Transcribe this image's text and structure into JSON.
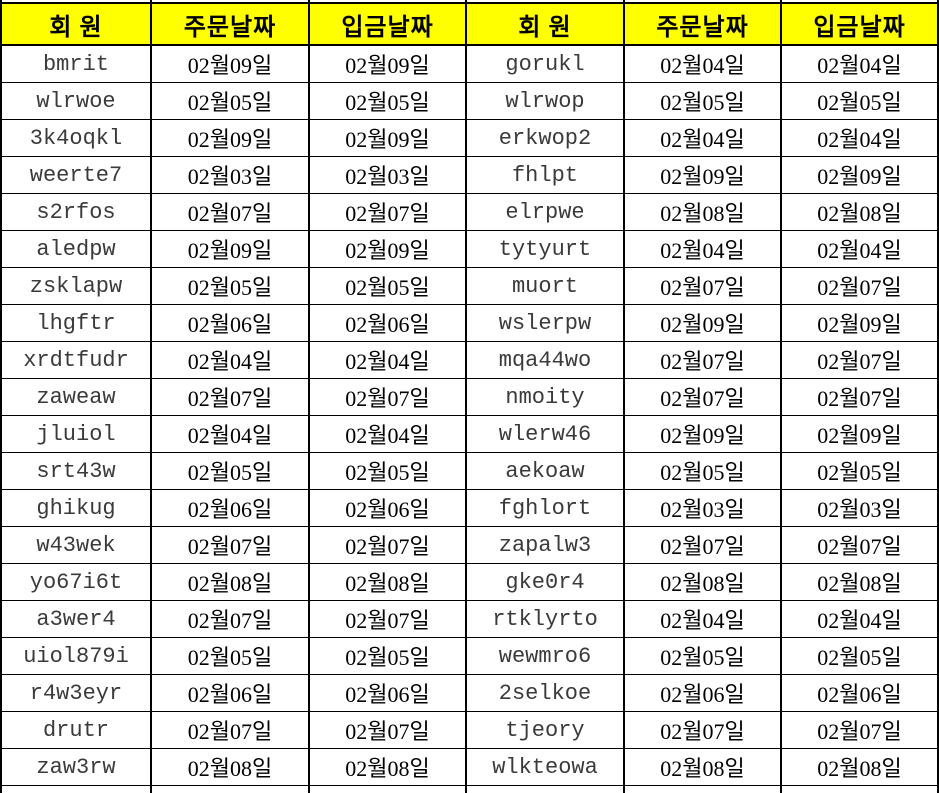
{
  "table": {
    "colors": {
      "header_bg": "#ffff00",
      "border": "#000000",
      "member_text": "#3a3a3a",
      "date_text": "#000000"
    },
    "headers": [
      "회 원",
      "주문날짜",
      "입금날짜",
      "회 원",
      "주문날짜",
      "입금날짜"
    ],
    "rows": [
      [
        "bmrit",
        "02월09일",
        "02월09일",
        "gorukl",
        "02월04일",
        "02월04일"
      ],
      [
        "wlrwoe",
        "02월05일",
        "02월05일",
        "wlrwop",
        "02월05일",
        "02월05일"
      ],
      [
        "3k4oqkl",
        "02월09일",
        "02월09일",
        "erkwop2",
        "02월04일",
        "02월04일"
      ],
      [
        "weerte7",
        "02월03일",
        "02월03일",
        "fhlpt",
        "02월09일",
        "02월09일"
      ],
      [
        "s2rfos",
        "02월07일",
        "02월07일",
        "elrpwe",
        "02월08일",
        "02월08일"
      ],
      [
        "aledpw",
        "02월09일",
        "02월09일",
        "tytyurt",
        "02월04일",
        "02월04일"
      ],
      [
        "zsklapw",
        "02월05일",
        "02월05일",
        "muort",
        "02월07일",
        "02월07일"
      ],
      [
        "lhgftr",
        "02월06일",
        "02월06일",
        "wslerpw",
        "02월09일",
        "02월09일"
      ],
      [
        "xrdtfudr",
        "02월04일",
        "02월04일",
        "mqa44wo",
        "02월07일",
        "02월07일"
      ],
      [
        "zaweaw",
        "02월07일",
        "02월07일",
        "nmoity",
        "02월07일",
        "02월07일"
      ],
      [
        "jluiol",
        "02월04일",
        "02월04일",
        "wlerw46",
        "02월09일",
        "02월09일"
      ],
      [
        "srt43w",
        "02월05일",
        "02월05일",
        "aekoaw",
        "02월05일",
        "02월05일"
      ],
      [
        "ghikug",
        "02월06일",
        "02월06일",
        "fghlort",
        "02월03일",
        "02월03일"
      ],
      [
        "w43wek",
        "02월07일",
        "02월07일",
        "zapalw3",
        "02월07일",
        "02월07일"
      ],
      [
        "yo67i6t",
        "02월08일",
        "02월08일",
        "gke0r4",
        "02월08일",
        "02월08일"
      ],
      [
        "a3wer4",
        "02월07일",
        "02월07일",
        "rtklyrto",
        "02월04일",
        "02월04일"
      ],
      [
        "uiol879i",
        "02월05일",
        "02월05일",
        "wewmro6",
        "02월05일",
        "02월05일"
      ],
      [
        "r4w3eyr",
        "02월06일",
        "02월06일",
        "2selkoe",
        "02월06일",
        "02월06일"
      ],
      [
        "drutr",
        "02월07일",
        "02월07일",
        "tjeory",
        "02월07일",
        "02월07일"
      ],
      [
        "zaw3rw",
        "02월08일",
        "02월08일",
        "wlkteowa",
        "02월08일",
        "02월08일"
      ]
    ]
  }
}
